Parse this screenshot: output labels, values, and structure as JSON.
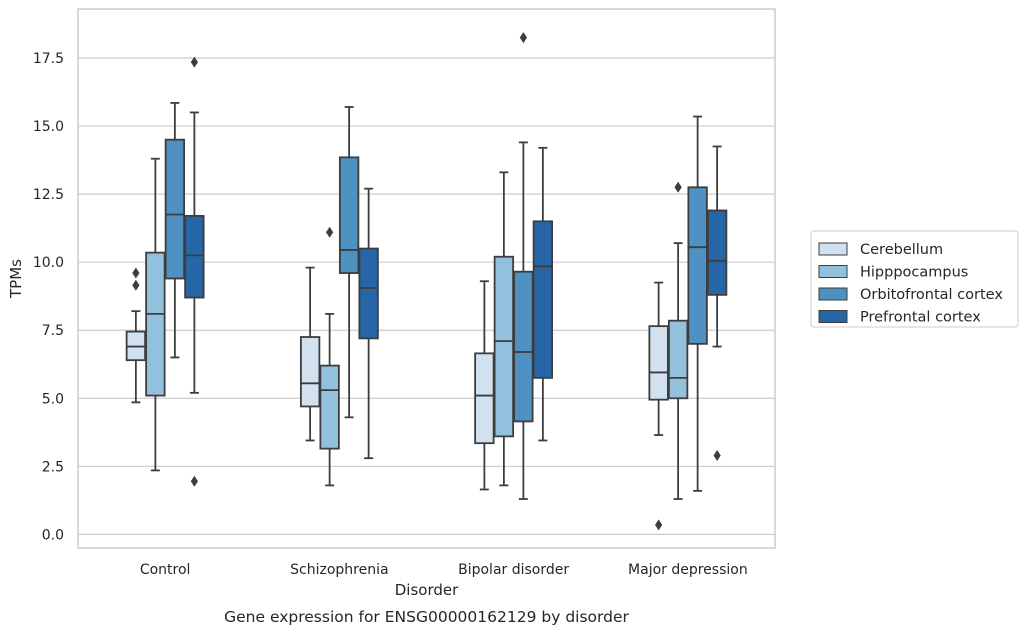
{
  "chart_data": {
    "type": "box",
    "title": "",
    "caption": "Gene expression for ENSG00000162129 by disorder",
    "xlabel": "Disorder",
    "ylabel": "TPMs",
    "ylim": [
      -0.5,
      19.3
    ],
    "yticks": [
      0.0,
      2.5,
      5.0,
      7.5,
      10.0,
      12.5,
      15.0,
      17.5
    ],
    "ytick_labels": [
      "0.0",
      "2.5",
      "5.0",
      "7.5",
      "10.0",
      "12.5",
      "15.0",
      "17.5"
    ],
    "grid": "horizontal",
    "legend_position": "right",
    "categories": [
      "Control",
      "Schizophrenia",
      "Bipolar disorder",
      "Major depression"
    ],
    "series": [
      {
        "name": "Cerebellum",
        "color": "#d1e1f0",
        "boxes": [
          {
            "whisker_low": 4.85,
            "q1": 6.4,
            "median": 6.9,
            "q3": 7.45,
            "whisker_high": 8.2,
            "outliers": [
              9.15,
              9.6
            ]
          },
          {
            "whisker_low": 3.45,
            "q1": 4.7,
            "median": 5.55,
            "q3": 7.25,
            "whisker_high": 9.8,
            "outliers": []
          },
          {
            "whisker_low": 1.65,
            "q1": 3.35,
            "median": 5.1,
            "q3": 6.65,
            "whisker_high": 9.3,
            "outliers": []
          },
          {
            "whisker_low": 3.65,
            "q1": 4.95,
            "median": 5.95,
            "q3": 7.65,
            "whisker_high": 9.25,
            "outliers": [
              0.35
            ]
          }
        ]
      },
      {
        "name": "Hipppocampus",
        "color": "#93c0dd",
        "boxes": [
          {
            "whisker_low": 2.35,
            "q1": 5.1,
            "median": 8.1,
            "q3": 10.35,
            "whisker_high": 13.8,
            "outliers": []
          },
          {
            "whisker_low": 1.8,
            "q1": 3.15,
            "median": 5.3,
            "q3": 6.2,
            "whisker_high": 8.1,
            "outliers": [
              11.1
            ]
          },
          {
            "whisker_low": 1.8,
            "q1": 3.6,
            "median": 7.1,
            "q3": 10.2,
            "whisker_high": 13.3,
            "outliers": []
          },
          {
            "whisker_low": 1.3,
            "q1": 5.0,
            "median": 5.75,
            "q3": 7.85,
            "whisker_high": 10.7,
            "outliers": [
              12.75
            ]
          }
        ]
      },
      {
        "name": "Orbitofrontal cortex",
        "color": "#4e91c2",
        "boxes": [
          {
            "whisker_low": 6.5,
            "q1": 9.4,
            "median": 11.75,
            "q3": 14.5,
            "whisker_high": 15.85,
            "outliers": []
          },
          {
            "whisker_low": 4.3,
            "q1": 9.6,
            "median": 10.45,
            "q3": 13.85,
            "whisker_high": 15.7,
            "outliers": []
          },
          {
            "whisker_low": 1.3,
            "q1": 4.15,
            "median": 6.7,
            "q3": 9.65,
            "whisker_high": 14.4,
            "outliers": [
              18.25
            ]
          },
          {
            "whisker_low": 1.6,
            "q1": 7.0,
            "median": 10.55,
            "q3": 12.75,
            "whisker_high": 15.35,
            "outliers": []
          }
        ]
      },
      {
        "name": "Prefrontal cortex",
        "color": "#2666a6",
        "boxes": [
          {
            "whisker_low": 5.2,
            "q1": 8.7,
            "median": 10.25,
            "q3": 11.7,
            "whisker_high": 15.5,
            "outliers": [
              1.95,
              17.35
            ]
          },
          {
            "whisker_low": 2.8,
            "q1": 7.2,
            "median": 9.05,
            "q3": 10.5,
            "whisker_high": 12.7,
            "outliers": []
          },
          {
            "whisker_low": 3.45,
            "q1": 5.75,
            "median": 9.85,
            "q3": 11.5,
            "whisker_high": 14.2,
            "outliers": []
          },
          {
            "whisker_low": 6.9,
            "q1": 8.8,
            "median": 10.05,
            "q3": 11.9,
            "whisker_high": 14.25,
            "outliers": [
              2.9
            ]
          }
        ]
      }
    ]
  }
}
